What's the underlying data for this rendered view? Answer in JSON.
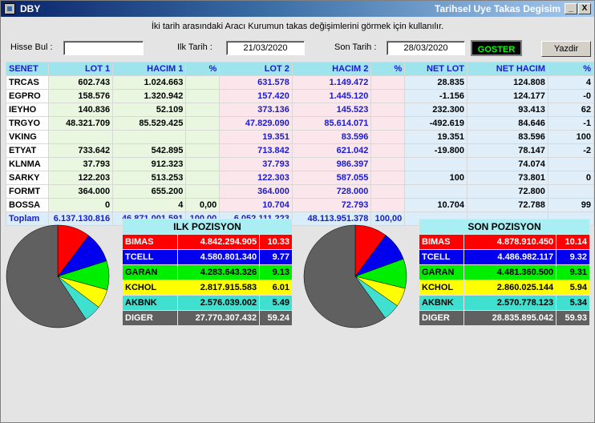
{
  "window": {
    "title": "DBY",
    "right_title": "Tarihsel Uye Takas Degisim"
  },
  "title_buttons": {
    "minimize": "_",
    "close": "X"
  },
  "instruction": "İki tarih arasındaki  Aracı Kurumun takas değişimlerini görmek için kullanılır.",
  "filters": {
    "hisse_label": "Hisse Bul :",
    "hisse_value": "",
    "ilk_label": "Ilk Tarih :",
    "ilk_value": "21/03/2020",
    "son_label": "Son Tarih :",
    "son_value": "28/03/2020",
    "goster_label": "GOSTER",
    "yazdir_label": "Yazdir"
  },
  "table": {
    "headers": [
      "SENET",
      "LOT 1",
      "HACIM 1",
      "%",
      "LOT 2",
      "HACIM 2",
      "%",
      "NET LOT",
      "NET HACIM",
      "%"
    ],
    "rows": [
      [
        "TRCAS",
        "602.743",
        "1.024.663",
        "",
        "631.578",
        "1.149.472",
        "",
        "28.835",
        "124.808",
        "4"
      ],
      [
        "EGPRO",
        "158.576",
        "1.320.942",
        "",
        "157.420",
        "1.445.120",
        "",
        "-1.156",
        "124.177",
        "-0"
      ],
      [
        "IEYHO",
        "140.836",
        "52.109",
        "",
        "373.136",
        "145.523",
        "",
        "232.300",
        "93.413",
        "62"
      ],
      [
        "TRGYO",
        "48.321.709",
        "85.529.425",
        "",
        "47.829.090",
        "85.614.071",
        "",
        "-492.619",
        "84.646",
        "-1"
      ],
      [
        "VKING",
        "",
        "",
        "",
        "19.351",
        "83.596",
        "",
        "19.351",
        "83.596",
        "100"
      ],
      [
        "ETYAT",
        "733.642",
        "542.895",
        "",
        "713.842",
        "621.042",
        "",
        "-19.800",
        "78.147",
        "-2"
      ],
      [
        "KLNMA",
        "37.793",
        "912.323",
        "",
        "37.793",
        "986.397",
        "",
        "",
        "74.074",
        ""
      ],
      [
        "SARKY",
        "122.203",
        "513.253",
        "",
        "122.303",
        "587.055",
        "",
        "100",
        "73.801",
        "0"
      ],
      [
        "FORMT",
        "364.000",
        "655.200",
        "",
        "364.000",
        "728.000",
        "",
        "",
        "72.800",
        ""
      ],
      [
        "BOSSA",
        "0",
        "4",
        "0,00",
        "10.704",
        "72.793",
        "",
        "10.704",
        "72.788",
        "99"
      ]
    ],
    "total": [
      "Toplam",
      "6.137.130.816",
      "46.871.001.591",
      "100,00",
      "6.052.111.223",
      "48.113.951.378",
      "100,00",
      "",
      "",
      ""
    ]
  },
  "ilk_pozisyon": {
    "title": "ILK POZISYON",
    "rows": [
      {
        "name": "BIMAS",
        "value": "4.842.294.905",
        "pct": "10.33",
        "color": "#ff0000",
        "text": "#ffffff"
      },
      {
        "name": "TCELL",
        "value": "4.580.801.340",
        "pct": "9.77",
        "color": "#0000ee",
        "text": "#ffffff"
      },
      {
        "name": "GARAN",
        "value": "4.283.643.326",
        "pct": "9.13",
        "color": "#00ee00",
        "text": "#000000"
      },
      {
        "name": "KCHOL",
        "value": "2.817.915.583",
        "pct": "6.01",
        "color": "#ffff00",
        "text": "#000000"
      },
      {
        "name": "AKBNK",
        "value": "2.576.039.002",
        "pct": "5.49",
        "color": "#40e0d0",
        "text": "#000000"
      },
      {
        "name": "DIGER",
        "value": "27.770.307.432",
        "pct": "59.24",
        "color": "#606060",
        "text": "#ffffff"
      }
    ]
  },
  "son_pozisyon": {
    "title": "SON POZISYON",
    "rows": [
      {
        "name": "BIMAS",
        "value": "4.878.910.450",
        "pct": "10.14",
        "color": "#ff0000",
        "text": "#ffffff"
      },
      {
        "name": "TCELL",
        "value": "4.486.982.117",
        "pct": "9.32",
        "color": "#0000ee",
        "text": "#ffffff"
      },
      {
        "name": "GARAN",
        "value": "4.481.360.500",
        "pct": "9.31",
        "color": "#00ee00",
        "text": "#000000"
      },
      {
        "name": "KCHOL",
        "value": "2.860.025.144",
        "pct": "5.94",
        "color": "#ffff00",
        "text": "#000000"
      },
      {
        "name": "AKBNK",
        "value": "2.570.778.123",
        "pct": "5.34",
        "color": "#40e0d0",
        "text": "#000000"
      },
      {
        "name": "DIGER",
        "value": "28.835.895.042",
        "pct": "59.93",
        "color": "#606060",
        "text": "#ffffff"
      }
    ]
  }
}
